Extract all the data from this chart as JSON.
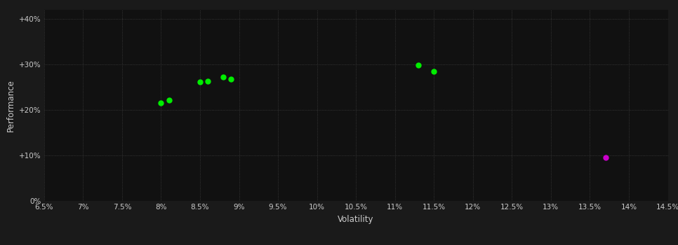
{
  "xlabel": "Volatility",
  "ylabel": "Performance",
  "background_color": "#1a1a1a",
  "plot_bg_color": "#111111",
  "grid_color": "#404040",
  "text_color": "#cccccc",
  "green_points": [
    [
      0.08,
      0.215
    ],
    [
      0.081,
      0.221
    ],
    [
      0.085,
      0.262
    ],
    [
      0.086,
      0.263
    ],
    [
      0.088,
      0.272
    ],
    [
      0.089,
      0.268
    ],
    [
      0.113,
      0.298
    ],
    [
      0.115,
      0.285
    ]
  ],
  "magenta_points": [
    [
      0.137,
      0.095
    ]
  ],
  "xlim": [
    0.065,
    0.145
  ],
  "ylim": [
    0.0,
    0.42
  ],
  "xticks": [
    0.065,
    0.07,
    0.075,
    0.08,
    0.085,
    0.09,
    0.095,
    0.1,
    0.105,
    0.11,
    0.115,
    0.12,
    0.125,
    0.13,
    0.135,
    0.14,
    0.145
  ],
  "yticks": [
    0.0,
    0.1,
    0.2,
    0.3,
    0.4
  ],
  "ytick_labels": [
    "0%",
    "+10%",
    "+20%",
    "+30%",
    "+40%"
  ],
  "green_color": "#00ee00",
  "magenta_color": "#cc00cc",
  "point_size": 25,
  "fontsize_ticks": 7.5,
  "fontsize_label": 8.5
}
